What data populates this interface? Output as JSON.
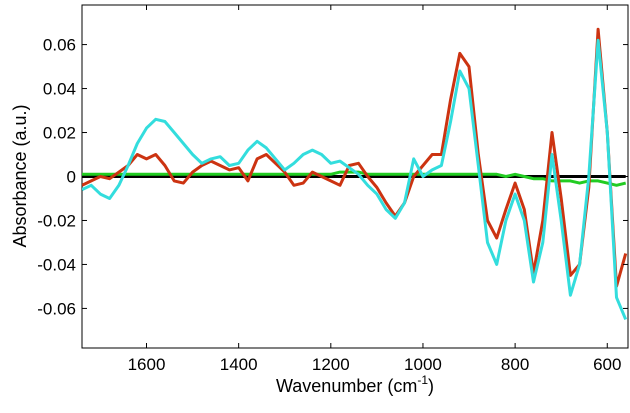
{
  "chart_data": {
    "type": "line",
    "x_label": [
      "Wavenumber (cm",
      "-1",
      ")"
    ],
    "y_label": "Absorbance (a.u.)",
    "x": [
      1740,
      1720,
      1700,
      1680,
      1660,
      1640,
      1620,
      1600,
      1580,
      1560,
      1540,
      1520,
      1500,
      1480,
      1460,
      1440,
      1420,
      1400,
      1380,
      1360,
      1340,
      1320,
      1300,
      1280,
      1260,
      1240,
      1220,
      1200,
      1180,
      1160,
      1140,
      1120,
      1100,
      1080,
      1060,
      1040,
      1020,
      1000,
      980,
      960,
      940,
      920,
      900,
      880,
      860,
      840,
      820,
      800,
      780,
      760,
      740,
      720,
      700,
      680,
      660,
      640,
      620,
      600,
      580,
      560
    ],
    "series": [
      {
        "color": "#000000",
        "values": [
          0,
          0,
          0,
          0,
          0,
          0,
          0,
          0,
          0,
          0,
          0,
          0,
          0,
          0,
          0,
          0,
          0,
          0,
          0,
          0,
          0,
          0,
          0,
          0,
          0,
          0,
          0,
          0,
          0,
          0,
          0,
          0,
          0,
          0,
          0,
          0,
          0,
          0,
          0,
          0,
          0,
          0,
          0,
          0,
          0,
          0,
          0,
          0,
          0,
          0,
          0,
          0,
          0,
          0,
          0,
          0,
          0,
          0,
          0,
          0
        ]
      },
      {
        "color": "#22cc22",
        "values": [
          0.001,
          0.001,
          0.001,
          0.001,
          0.001,
          0.001,
          0.001,
          0.001,
          0.001,
          0.001,
          0.001,
          0.001,
          0.001,
          0.001,
          0.001,
          0.001,
          0.001,
          0.001,
          0.001,
          0.001,
          0.001,
          0.001,
          0.001,
          0.001,
          0.001,
          0.001,
          0.001,
          0.001,
          0.002,
          0.002,
          0.002,
          0.001,
          0.001,
          0.001,
          0.001,
          0.001,
          0.001,
          0.001,
          0.001,
          0.001,
          0.001,
          0.001,
          0.001,
          0.001,
          0.001,
          0.001,
          0.0,
          0.001,
          0.0,
          -0.001,
          -0.001,
          -0.002,
          -0.002,
          -0.002,
          -0.003,
          -0.002,
          -0.002,
          -0.003,
          -0.004,
          -0.003
        ]
      },
      {
        "color": "#cc3311",
        "values": [
          -0.004,
          -0.002,
          0.0,
          -0.001,
          0.002,
          0.005,
          0.01,
          0.008,
          0.01,
          0.005,
          -0.002,
          -0.003,
          0.002,
          0.005,
          0.007,
          0.005,
          0.003,
          0.004,
          -0.002,
          0.008,
          0.01,
          0.006,
          0.002,
          -0.004,
          -0.003,
          0.002,
          0.0,
          -0.002,
          -0.004,
          0.005,
          0.006,
          0.0,
          -0.005,
          -0.012,
          -0.018,
          -0.012,
          0.0,
          0.005,
          0.01,
          0.01,
          0.035,
          0.056,
          0.05,
          0.01,
          -0.02,
          -0.028,
          -0.015,
          -0.003,
          -0.015,
          -0.044,
          -0.02,
          0.02,
          -0.01,
          -0.045,
          -0.04,
          -0.005,
          0.067,
          0.02,
          -0.05,
          -0.035
        ]
      },
      {
        "color": "#33dddd",
        "values": [
          -0.006,
          -0.004,
          -0.008,
          -0.01,
          -0.004,
          0.005,
          0.015,
          0.022,
          0.026,
          0.025,
          0.02,
          0.015,
          0.01,
          0.006,
          0.008,
          0.009,
          0.005,
          0.006,
          0.012,
          0.016,
          0.013,
          0.008,
          0.003,
          0.006,
          0.01,
          0.012,
          0.01,
          0.006,
          0.007,
          0.004,
          0.001,
          -0.004,
          -0.008,
          -0.015,
          -0.019,
          -0.012,
          0.008,
          0.0,
          0.003,
          0.005,
          0.025,
          0.048,
          0.04,
          0.005,
          -0.03,
          -0.04,
          -0.02,
          -0.008,
          -0.02,
          -0.048,
          -0.03,
          0.01,
          -0.02,
          -0.054,
          -0.04,
          0.0,
          0.062,
          0.02,
          -0.055,
          -0.065
        ]
      }
    ],
    "xlim": [
      1740,
      555
    ],
    "xticks": [
      1600,
      1400,
      1200,
      1000,
      800,
      600
    ],
    "ylim": [
      -0.078,
      0.078
    ],
    "yticks": [
      -0.06,
      -0.04,
      -0.02,
      0,
      0.02,
      0.04,
      0.06
    ]
  }
}
